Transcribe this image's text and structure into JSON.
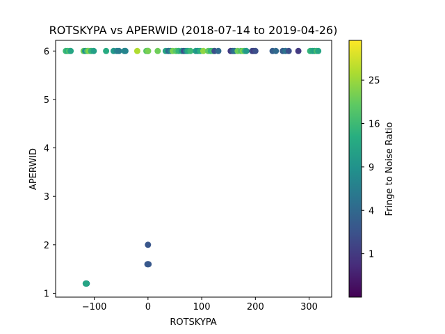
{
  "chart_data": {
    "type": "scatter",
    "title": "ROTSKYPA vs APERWID (2018-07-14 to 2019-04-26)",
    "xlabel": "ROTSKYPA",
    "ylabel": "APERWID",
    "xlim": [
      -172,
      342
    ],
    "ylim": [
      0.92,
      6.22
    ],
    "xticks": [
      -100,
      0,
      100,
      200,
      300
    ],
    "yticks": [
      1,
      2,
      3,
      4,
      5,
      6
    ],
    "colorbar": {
      "label": "Fringe to Noise Ratio",
      "scale": "sqrt",
      "range": [
        0,
        35
      ],
      "ticks": [
        1,
        4,
        9,
        16,
        25
      ]
    },
    "grid": false,
    "points": [
      {
        "x": -153,
        "y": 6,
        "c": 16
      },
      {
        "x": -150,
        "y": 6,
        "c": 14
      },
      {
        "x": -147,
        "y": 6,
        "c": 18
      },
      {
        "x": -144,
        "y": 6,
        "c": 12
      },
      {
        "x": -120,
        "y": 6,
        "c": 21
      },
      {
        "x": -117,
        "y": 6,
        "c": 9
      },
      {
        "x": -113,
        "y": 6,
        "c": 18
      },
      {
        "x": -110,
        "y": 6,
        "c": 23
      },
      {
        "x": -106,
        "y": 6,
        "c": 15
      },
      {
        "x": -101,
        "y": 6,
        "c": 11
      },
      {
        "x": -78,
        "y": 6,
        "c": 13
      },
      {
        "x": -64,
        "y": 6,
        "c": 10
      },
      {
        "x": -58,
        "y": 6,
        "c": 7
      },
      {
        "x": -54,
        "y": 6,
        "c": 6
      },
      {
        "x": -44,
        "y": 6,
        "c": 8
      },
      {
        "x": -42,
        "y": 6,
        "c": 7
      },
      {
        "x": -20,
        "y": 6,
        "c": 27
      },
      {
        "x": -3,
        "y": 6,
        "c": 19
      },
      {
        "x": 0,
        "y": 6,
        "c": 5
      },
      {
        "x": 0,
        "y": 6,
        "c": 14
      },
      {
        "x": 0,
        "y": 6,
        "c": 22
      },
      {
        "x": 18,
        "y": 6,
        "c": 21
      },
      {
        "x": 33,
        "y": 6,
        "c": 12
      },
      {
        "x": 38,
        "y": 6,
        "c": 4
      },
      {
        "x": 42,
        "y": 6,
        "c": 7
      },
      {
        "x": 46,
        "y": 6,
        "c": 22
      },
      {
        "x": 52,
        "y": 6,
        "c": 19
      },
      {
        "x": 57,
        "y": 6,
        "c": 15
      },
      {
        "x": 63,
        "y": 6,
        "c": 10
      },
      {
        "x": 67,
        "y": 6,
        "c": 2
      },
      {
        "x": 71,
        "y": 6,
        "c": 7
      },
      {
        "x": 74,
        "y": 6,
        "c": 13
      },
      {
        "x": 79,
        "y": 6,
        "c": 16
      },
      {
        "x": 89,
        "y": 6,
        "c": 11
      },
      {
        "x": 93,
        "y": 6,
        "c": 9
      },
      {
        "x": 97,
        "y": 6,
        "c": 14
      },
      {
        "x": 103,
        "y": 6,
        "c": 24
      },
      {
        "x": 112,
        "y": 6,
        "c": 20
      },
      {
        "x": 117,
        "y": 6,
        "c": 15
      },
      {
        "x": 121,
        "y": 6,
        "c": 17
      },
      {
        "x": 124,
        "y": 6,
        "c": 2
      },
      {
        "x": 131,
        "y": 6,
        "c": 4
      },
      {
        "x": 154,
        "y": 6,
        "c": 1
      },
      {
        "x": 158,
        "y": 6,
        "c": 3
      },
      {
        "x": 161,
        "y": 6,
        "c": 5
      },
      {
        "x": 167,
        "y": 6,
        "c": 21
      },
      {
        "x": 173,
        "y": 6,
        "c": 18
      },
      {
        "x": 177,
        "y": 6,
        "c": 23
      },
      {
        "x": 180,
        "y": 6,
        "c": 16
      },
      {
        "x": 183,
        "y": 6,
        "c": 10
      },
      {
        "x": 194,
        "y": 6,
        "c": 2
      },
      {
        "x": 197,
        "y": 6,
        "c": 1
      },
      {
        "x": 200,
        "y": 6,
        "c": 2
      },
      {
        "x": 232,
        "y": 6,
        "c": 3
      },
      {
        "x": 238,
        "y": 6,
        "c": 4
      },
      {
        "x": 251,
        "y": 6,
        "c": 3
      },
      {
        "x": 256,
        "y": 6,
        "c": 5
      },
      {
        "x": 262,
        "y": 6,
        "c": 2
      },
      {
        "x": 280,
        "y": 6,
        "c": 1
      },
      {
        "x": 302,
        "y": 6,
        "c": 15
      },
      {
        "x": 306,
        "y": 6,
        "c": 13
      },
      {
        "x": 310,
        "y": 6,
        "c": 11
      },
      {
        "x": 314,
        "y": 6,
        "c": 17
      },
      {
        "x": 317,
        "y": 6,
        "c": 12
      },
      {
        "x": 0,
        "y": 2,
        "c": 2.5
      },
      {
        "x": -1,
        "y": 1.6,
        "c": 2.2
      },
      {
        "x": 0,
        "y": 1.6,
        "c": 3.0
      },
      {
        "x": 1,
        "y": 1.6,
        "c": 2.6
      },
      {
        "x": -116,
        "y": 1.2,
        "c": 10
      },
      {
        "x": -114,
        "y": 1.2,
        "c": 8
      },
      {
        "x": -115,
        "y": 1.2,
        "c": 12
      }
    ]
  }
}
